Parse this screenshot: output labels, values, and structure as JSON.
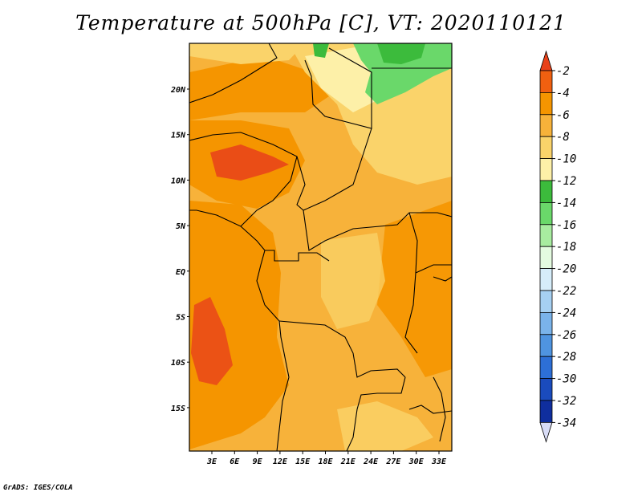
{
  "title": "Temperature at 500hPa [C], VT: 2020110121",
  "credit": "GrADS: IGES/COLA",
  "map": {
    "lat_labels": [
      "20N",
      "15N",
      "10N",
      "5N",
      "EQ",
      "5S",
      "10S",
      "15S"
    ],
    "lon_labels": [
      "3E",
      "6E",
      "9E",
      "12E",
      "15E",
      "18E",
      "21E",
      "24E",
      "27E",
      "30E",
      "33E"
    ]
  },
  "colorbar": {
    "labels": [
      "-2",
      "-4",
      "-6",
      "-8",
      "-10",
      "-12",
      "-14",
      "-16",
      "-18",
      "-20",
      "-22",
      "-24",
      "-26",
      "-28",
      "-30",
      "-32",
      "-34"
    ],
    "colors": [
      "#e8411a",
      "#f06010",
      "#f59500",
      "#f7b23a",
      "#fad36a",
      "#fdf0a8",
      "#3cbb3c",
      "#6ad86a",
      "#a8eca0",
      "#e4fbe0",
      "#d6edfa",
      "#a6d0f2",
      "#7ab3ea",
      "#4f94e0",
      "#2d6fd6",
      "#1a4bbd",
      "#0f2e9e",
      "#0a1a7a",
      "#d8dcf6"
    ]
  }
}
